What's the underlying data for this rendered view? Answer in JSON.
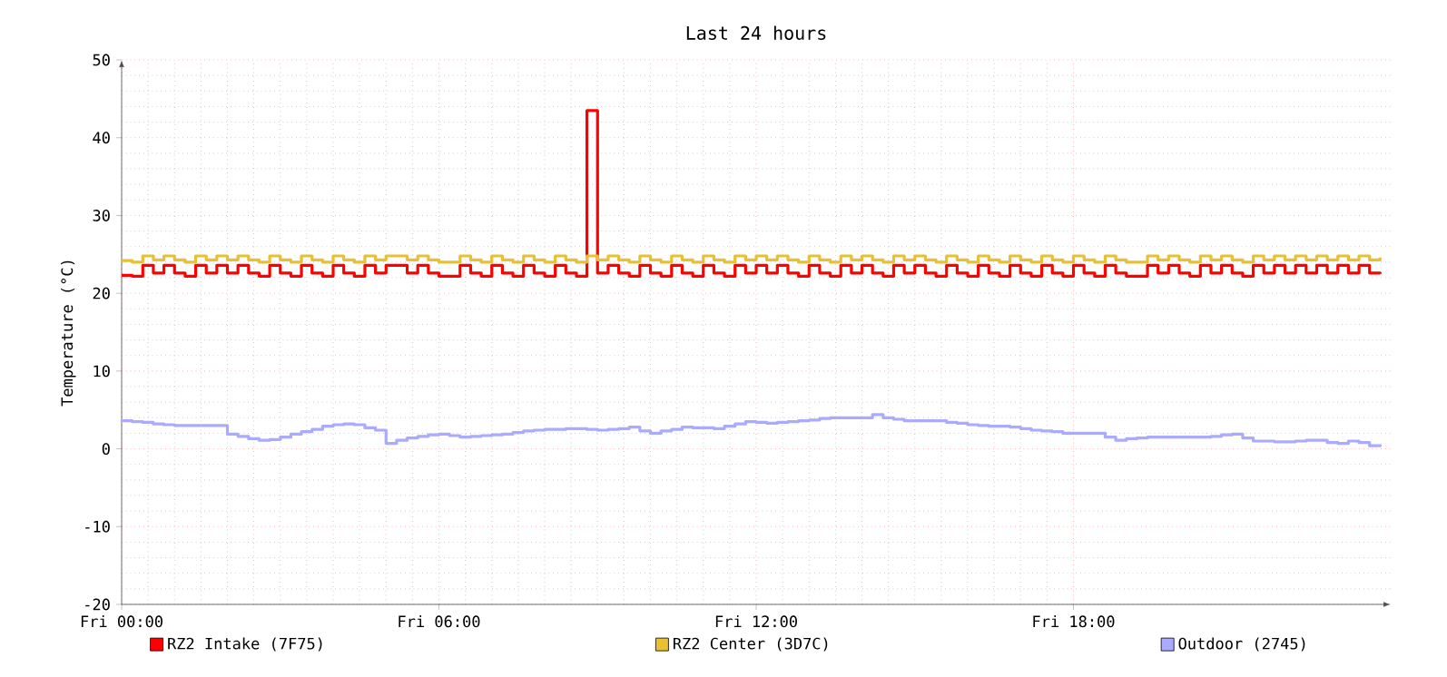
{
  "chart_data": {
    "type": "step",
    "title": "Last 24 hours",
    "ylabel": "Temperature (°C)",
    "categories": [
      "Fri 00:00",
      null,
      null,
      null,
      null,
      null,
      null,
      null,
      null,
      null,
      null,
      null,
      null,
      null,
      null,
      null,
      null,
      null,
      null,
      null,
      null,
      null,
      null,
      null,
      null,
      null,
      null,
      null,
      null,
      null,
      "Fri 06:00",
      null,
      null,
      null,
      null,
      null,
      null,
      null,
      null,
      null,
      null,
      null,
      null,
      null,
      null,
      null,
      null,
      null,
      null,
      null,
      null,
      null,
      null,
      null,
      null,
      null,
      null,
      null,
      null,
      null,
      "Fri 12:00",
      null,
      null,
      null,
      null,
      null,
      null,
      null,
      null,
      null,
      null,
      null,
      null,
      null,
      null,
      null,
      null,
      null,
      null,
      null,
      null,
      null,
      null,
      null,
      null,
      null,
      null,
      null,
      null,
      null,
      "Fri 18:00",
      null,
      null,
      null,
      null,
      null,
      null,
      null,
      null,
      null,
      null,
      null,
      null,
      null,
      null,
      null,
      null,
      null,
      null,
      null,
      null,
      null,
      null,
      null,
      null,
      null,
      null,
      null,
      null,
      null
    ],
    "ylim": [
      -20,
      50
    ],
    "yticks": [
      -20,
      -10,
      0,
      10,
      20,
      30,
      40,
      50
    ],
    "grid": true,
    "legend": "bottom",
    "series": [
      {
        "name": "RZ2 Intake (7F75)",
        "color": "#ff0000",
        "values": [
          22.3,
          22.2,
          23.6,
          22.6,
          23.6,
          22.6,
          22.2,
          23.6,
          22.6,
          23.6,
          22.6,
          23.6,
          22.6,
          22.2,
          23.6,
          22.6,
          22.2,
          23.6,
          22.6,
          22.2,
          23.6,
          22.6,
          22.2,
          23.6,
          22.6,
          23.6,
          23.6,
          22.6,
          23.6,
          22.6,
          22.2,
          22.2,
          23.6,
          22.6,
          22.2,
          23.6,
          22.6,
          22.2,
          23.6,
          22.6,
          22.2,
          23.6,
          22.6,
          22.2,
          43.5,
          22.6,
          23.6,
          22.6,
          22.2,
          23.6,
          22.6,
          22.2,
          23.6,
          22.6,
          22.2,
          23.6,
          22.6,
          22.2,
          23.6,
          22.6,
          23.6,
          22.6,
          23.6,
          22.6,
          22.2,
          23.6,
          22.6,
          22.2,
          23.6,
          22.6,
          23.6,
          22.6,
          22.2,
          23.6,
          22.6,
          23.6,
          22.6,
          22.2,
          23.6,
          22.6,
          22.2,
          23.6,
          22.6,
          22.2,
          23.6,
          22.6,
          22.2,
          23.6,
          22.6,
          22.2,
          23.6,
          22.6,
          22.2,
          23.6,
          22.6,
          22.2,
          22.2,
          23.6,
          22.6,
          23.6,
          22.6,
          22.2,
          23.6,
          22.6,
          23.6,
          22.6,
          22.2,
          23.6,
          22.6,
          23.6,
          22.6,
          23.6,
          22.6,
          23.6,
          22.6,
          23.6,
          22.6,
          23.6,
          22.6,
          22.5
        ]
      },
      {
        "name": "RZ2 Center (3D7C)",
        "color": "#e8c030",
        "values": [
          24.2,
          24.0,
          24.8,
          24.3,
          24.8,
          24.3,
          24.0,
          24.8,
          24.3,
          24.8,
          24.3,
          24.8,
          24.3,
          24.0,
          24.8,
          24.3,
          24.0,
          24.8,
          24.3,
          24.0,
          24.8,
          24.3,
          24.0,
          24.8,
          24.3,
          24.8,
          24.8,
          24.3,
          24.8,
          24.3,
          24.0,
          24.0,
          24.8,
          24.3,
          24.0,
          24.8,
          24.3,
          24.0,
          24.8,
          24.3,
          24.0,
          24.8,
          24.3,
          24.0,
          24.8,
          24.3,
          24.8,
          24.3,
          24.0,
          24.8,
          24.3,
          24.0,
          24.8,
          24.3,
          24.0,
          24.8,
          24.3,
          24.0,
          24.8,
          24.3,
          24.8,
          24.3,
          24.8,
          24.3,
          24.0,
          24.8,
          24.3,
          24.0,
          24.8,
          24.3,
          24.8,
          24.3,
          24.0,
          24.8,
          24.3,
          24.8,
          24.3,
          24.0,
          24.8,
          24.3,
          24.0,
          24.8,
          24.3,
          24.0,
          24.8,
          24.3,
          24.0,
          24.8,
          24.3,
          24.0,
          24.8,
          24.3,
          24.0,
          24.8,
          24.3,
          24.0,
          24.0,
          24.8,
          24.3,
          24.8,
          24.3,
          24.0,
          24.8,
          24.3,
          24.8,
          24.3,
          24.0,
          24.8,
          24.3,
          24.8,
          24.3,
          24.8,
          24.3,
          24.8,
          24.3,
          24.8,
          24.3,
          24.8,
          24.3,
          24.6
        ]
      },
      {
        "name": "Outdoor (2745)",
        "color": "#aaaaff",
        "values": [
          3.6,
          3.5,
          3.4,
          3.2,
          3.1,
          3.0,
          3.0,
          3.0,
          3.0,
          3.0,
          1.9,
          1.6,
          1.3,
          1.1,
          1.2,
          1.5,
          1.9,
          2.2,
          2.5,
          2.9,
          3.1,
          3.2,
          3.1,
          2.7,
          2.4,
          0.7,
          1.1,
          1.4,
          1.6,
          1.8,
          1.9,
          1.7,
          1.5,
          1.6,
          1.7,
          1.8,
          1.9,
          2.1,
          2.3,
          2.4,
          2.5,
          2.5,
          2.6,
          2.6,
          2.5,
          2.4,
          2.5,
          2.6,
          2.8,
          2.3,
          2.0,
          2.3,
          2.5,
          2.8,
          2.7,
          2.7,
          2.6,
          2.9,
          3.2,
          3.5,
          3.4,
          3.3,
          3.4,
          3.5,
          3.6,
          3.7,
          3.9,
          4.0,
          4.0,
          4.0,
          4.0,
          4.4,
          4.0,
          3.8,
          3.6,
          3.6,
          3.6,
          3.6,
          3.4,
          3.3,
          3.1,
          3.0,
          2.9,
          2.9,
          2.8,
          2.6,
          2.4,
          2.3,
          2.2,
          2.0,
          2.0,
          2.0,
          2.0,
          1.5,
          1.1,
          1.3,
          1.4,
          1.5,
          1.5,
          1.5,
          1.5,
          1.5,
          1.5,
          1.6,
          1.8,
          1.9,
          1.4,
          1.0,
          1.0,
          0.9,
          0.9,
          1.0,
          1.1,
          1.1,
          0.8,
          0.7,
          1.0,
          0.8,
          0.4,
          0.6
        ]
      }
    ]
  }
}
